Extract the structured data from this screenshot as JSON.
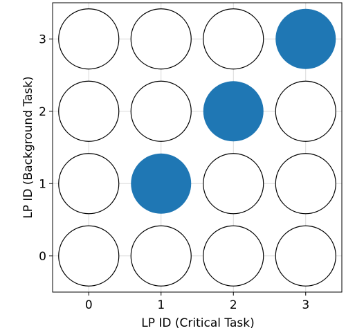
{
  "chart_data": {
    "type": "scatter",
    "xlabel": "LP ID (Critical Task)",
    "ylabel": "LP ID (Background Task)",
    "x_ticks": [
      "0",
      "1",
      "2",
      "3"
    ],
    "y_ticks": [
      "0",
      "1",
      "2",
      "3"
    ],
    "xlim": [
      -0.5,
      3.5
    ],
    "ylim": [
      -0.5,
      3.5
    ],
    "grid": true,
    "filled_color": "#1f77b4",
    "empty_fill": "#ffffff",
    "marker_edge": "#000000",
    "grid_color": "#d9d9d9",
    "points": [
      {
        "x": 0,
        "y": 0,
        "filled": false
      },
      {
        "x": 1,
        "y": 0,
        "filled": false
      },
      {
        "x": 2,
        "y": 0,
        "filled": false
      },
      {
        "x": 3,
        "y": 0,
        "filled": false
      },
      {
        "x": 0,
        "y": 1,
        "filled": false
      },
      {
        "x": 1,
        "y": 1,
        "filled": true
      },
      {
        "x": 2,
        "y": 1,
        "filled": false
      },
      {
        "x": 3,
        "y": 1,
        "filled": false
      },
      {
        "x": 0,
        "y": 2,
        "filled": false
      },
      {
        "x": 1,
        "y": 2,
        "filled": false
      },
      {
        "x": 2,
        "y": 2,
        "filled": true
      },
      {
        "x": 3,
        "y": 2,
        "filled": false
      },
      {
        "x": 0,
        "y": 3,
        "filled": false
      },
      {
        "x": 1,
        "y": 3,
        "filled": false
      },
      {
        "x": 2,
        "y": 3,
        "filled": false
      },
      {
        "x": 3,
        "y": 3,
        "filled": true
      }
    ]
  }
}
